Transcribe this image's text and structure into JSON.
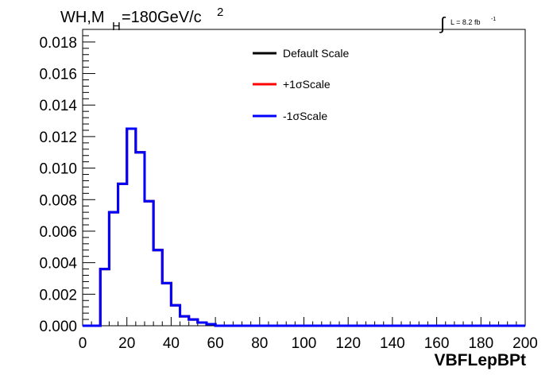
{
  "chart_data": {
    "type": "histogram-step",
    "title": {
      "main": "WH,M",
      "subscript": "H",
      "value": "=180GeV/c",
      "superscript": "2"
    },
    "lumi": {
      "integral_sign": "∫",
      "text": "L = 8.2 fb",
      "superscript": "-1"
    },
    "xlabel": "VBFLepBPt",
    "ylabel": "",
    "xlim": [
      0,
      200
    ],
    "ylim": [
      0,
      0.0188
    ],
    "x_ticks": [
      "0",
      "20",
      "40",
      "60",
      "80",
      "100",
      "120",
      "140",
      "160",
      "180",
      "200"
    ],
    "x_tick_values": [
      0,
      20,
      40,
      60,
      80,
      100,
      120,
      140,
      160,
      180,
      200
    ],
    "y_ticks": [
      "0.000",
      "0.002",
      "0.004",
      "0.006",
      "0.008",
      "0.010",
      "0.012",
      "0.014",
      "0.016",
      "0.018"
    ],
    "y_tick_values": [
      0,
      0.002,
      0.004,
      0.006,
      0.008,
      0.01,
      0.012,
      0.014,
      0.016,
      0.018
    ],
    "legend_position": "top-right",
    "bin_edges": [
      0,
      4,
      8,
      12,
      16,
      20,
      24,
      28,
      32,
      36,
      40,
      44,
      48,
      52,
      56,
      60,
      64,
      68,
      72,
      76,
      80,
      84,
      88,
      92,
      96,
      100,
      104,
      108,
      112,
      116,
      120,
      124,
      128,
      132,
      136,
      140,
      144,
      148,
      152,
      156,
      160,
      164,
      168,
      172,
      176,
      180,
      184,
      188,
      192,
      196,
      200
    ],
    "series": [
      {
        "name": "Default Scale",
        "color": "#000000",
        "values": [
          0,
          0,
          0.0036,
          0.0072,
          0.009,
          0.0125,
          0.011,
          0.0079,
          0.0048,
          0.0027,
          0.0013,
          0.0006,
          0.0004,
          0.0002,
          0.0001,
          0,
          0,
          0,
          0,
          0,
          0,
          0,
          0,
          0,
          0,
          0,
          0,
          0,
          0,
          0,
          0,
          0,
          0,
          0,
          0,
          0,
          0,
          0,
          0,
          0,
          0,
          0,
          0,
          0,
          0,
          0,
          0,
          0,
          0,
          0
        ]
      },
      {
        "name": "+1σScale",
        "color": "#ff0000",
        "values": [
          0,
          0,
          0.0036,
          0.0072,
          0.009,
          0.0125,
          0.011,
          0.0079,
          0.0048,
          0.0027,
          0.0013,
          0.0006,
          0.0004,
          0.0002,
          0.0001,
          0,
          0,
          0,
          0,
          0,
          0,
          0,
          0,
          0,
          0,
          0,
          0,
          0,
          0,
          0,
          0,
          0,
          0,
          0,
          0,
          0,
          0,
          0,
          0,
          0,
          0,
          0,
          0,
          0,
          0,
          0,
          0,
          0,
          0,
          0
        ]
      },
      {
        "name": "-1σScale",
        "color": "#0000ff",
        "values": [
          0,
          0,
          0.0036,
          0.0072,
          0.009,
          0.0125,
          0.011,
          0.0079,
          0.0048,
          0.0027,
          0.0013,
          0.0006,
          0.0004,
          0.0002,
          0.0001,
          0,
          0,
          0,
          0,
          0,
          0,
          0,
          0,
          0,
          0,
          0,
          0,
          0,
          0,
          0,
          0,
          0,
          0,
          0,
          0,
          0,
          0,
          0,
          0,
          0,
          0,
          0,
          0,
          0,
          0,
          0,
          0,
          0,
          0,
          0
        ]
      }
    ]
  }
}
